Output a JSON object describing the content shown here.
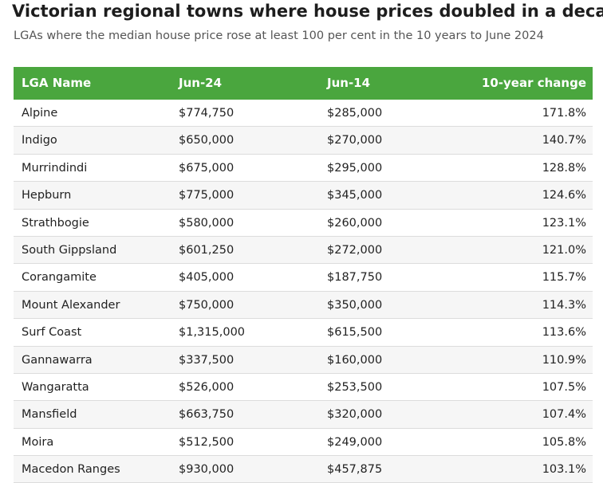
{
  "header": {
    "title": "Victorian regional towns where house prices doubled in a decade",
    "subtitle": "LGAs where the median house price rose at least 100 per cent in the 10 years to June 2024"
  },
  "chart_data": {
    "type": "table",
    "title": "Victorian regional towns where house prices doubled in a decade",
    "subtitle": "LGAs where the median house price rose at least 100 per cent in the 10 years to June 2024",
    "columns": [
      "LGA Name",
      "Jun-24",
      "Jun-14",
      "10-year change"
    ],
    "rows": [
      [
        "Alpine",
        "$774,750",
        "$285,000",
        "171.8%"
      ],
      [
        "Indigo",
        "$650,000",
        "$270,000",
        "140.7%"
      ],
      [
        "Murrindindi",
        "$675,000",
        "$295,000",
        "128.8%"
      ],
      [
        "Hepburn",
        "$775,000",
        "$345,000",
        "124.6%"
      ],
      [
        "Strathbogie",
        "$580,000",
        "$260,000",
        "123.1%"
      ],
      [
        "South Gippsland",
        "$601,250",
        "$272,000",
        "121.0%"
      ],
      [
        "Corangamite",
        "$405,000",
        "$187,750",
        "115.7%"
      ],
      [
        "Mount Alexander",
        "$750,000",
        "$350,000",
        "114.3%"
      ],
      [
        "Surf Coast",
        "$1,315,000",
        "$615,500",
        "113.6%"
      ],
      [
        "Gannawarra",
        "$337,500",
        "$160,000",
        "110.9%"
      ],
      [
        "Wangaratta",
        "$526,000",
        "$253,500",
        "107.5%"
      ],
      [
        "Mansfield",
        "$663,750",
        "$320,000",
        "107.4%"
      ],
      [
        "Moira",
        "$512,500",
        "$249,000",
        "105.8%"
      ],
      [
        "Macedon Ranges",
        "$930,000",
        "$457,875",
        "103.1%"
      ]
    ]
  },
  "colors": {
    "header_bg": "#4aa63e",
    "header_text": "#ffffff",
    "row_alt_bg": "#f6f6f6"
  }
}
